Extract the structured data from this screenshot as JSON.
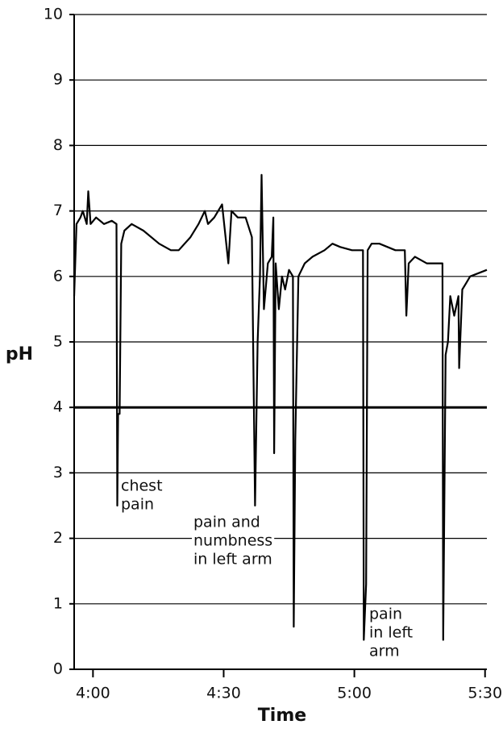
{
  "chart_data": {
    "type": "line",
    "xlabel": "Time",
    "ylabel": "pH",
    "xlim": [
      3.928,
      5.507
    ],
    "ylim": [
      0,
      10
    ],
    "xticks": [
      {
        "value": 4,
        "label": "4:00"
      },
      {
        "value": 4.5,
        "label": "4:30"
      },
      {
        "value": 5,
        "label": "5:00"
      },
      {
        "value": 5.5,
        "label": "5:30"
      }
    ],
    "yticks": [
      0,
      1,
      2,
      3,
      4,
      5,
      6,
      7,
      8,
      9,
      10
    ],
    "grid": true,
    "reference_line": 4,
    "x": [
      3.928,
      3.937,
      3.952,
      3.961,
      3.976,
      3.982,
      3.991,
      4.012,
      4.042,
      4.072,
      4.09,
      4.093,
      4.096,
      4.102,
      4.108,
      4.12,
      4.148,
      4.193,
      4.253,
      4.298,
      4.328,
      4.373,
      4.404,
      4.428,
      4.44,
      4.464,
      4.494,
      4.518,
      4.53,
      4.554,
      4.584,
      4.608,
      4.62,
      4.63,
      4.639,
      4.645,
      4.654,
      4.669,
      4.684,
      4.69,
      4.693,
      4.699,
      4.711,
      4.723,
      4.735,
      4.75,
      4.765,
      4.768,
      4.774,
      4.78,
      4.786,
      4.81,
      4.84,
      4.886,
      4.916,
      4.946,
      4.991,
      5.021,
      5.033,
      5.036,
      5.045,
      5.051,
      5.066,
      5.096,
      5.157,
      5.193,
      5.199,
      5.208,
      5.232,
      5.277,
      5.322,
      5.337,
      5.34,
      5.349,
      5.358,
      5.367,
      5.382,
      5.398,
      5.401,
      5.413,
      5.428,
      5.443,
      5.507
    ],
    "series": [
      {
        "color": "#000000",
        "values": [
          5.7,
          6.8,
          6.9,
          7.0,
          6.8,
          7.3,
          6.8,
          6.9,
          6.8,
          6.85,
          6.8,
          2.5,
          3.9,
          3.9,
          6.5,
          6.7,
          6.8,
          6.7,
          6.5,
          6.4,
          6.4,
          6.6,
          6.8,
          7.0,
          6.8,
          6.9,
          7.1,
          6.2,
          7.0,
          6.9,
          6.9,
          6.6,
          2.5,
          5.0,
          6.0,
          7.55,
          5.5,
          6.2,
          6.3,
          6.9,
          3.3,
          6.2,
          5.5,
          6.0,
          5.8,
          6.1,
          6.0,
          0.65,
          3.5,
          4.8,
          6.0,
          6.2,
          6.3,
          6.4,
          6.5,
          6.45,
          6.4,
          6.4,
          6.4,
          0.45,
          1.3,
          6.4,
          6.5,
          6.5,
          6.4,
          6.4,
          5.4,
          6.2,
          6.3,
          6.2,
          6.2,
          6.2,
          0.45,
          4.8,
          5.0,
          5.7,
          5.4,
          5.7,
          4.6,
          5.8,
          5.9,
          6.0,
          6.1
        ]
      }
    ],
    "annotations": [
      [
        "chest",
        "pain"
      ],
      [
        "pain and",
        "numbness",
        "in left arm"
      ],
      [
        "pain",
        "in left",
        "arm"
      ]
    ]
  }
}
